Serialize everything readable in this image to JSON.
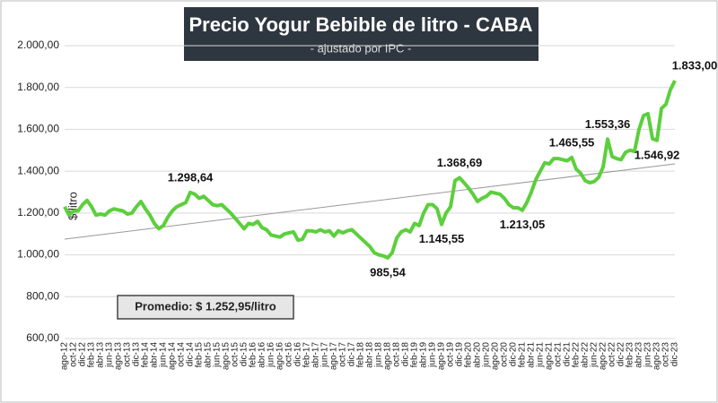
{
  "chart_data": {
    "type": "line",
    "title": "Precio Yogur Bebible de litro - CABA",
    "subtitle": "- ajustado por IPC -",
    "y_label": "$/litro",
    "annotation": "Promedio: $ 1.252,95/litro",
    "ylim": [
      600,
      2000
    ],
    "yticks": [
      {
        "value": 600,
        "label": "600,00"
      },
      {
        "value": 800,
        "label": "800,00"
      },
      {
        "value": 1000,
        "label": "1.000,00"
      },
      {
        "value": 1200,
        "label": "1.200,00"
      },
      {
        "value": 1400,
        "label": "1.400,00"
      },
      {
        "value": 1600,
        "label": "1.600,00"
      },
      {
        "value": 1800,
        "label": "1.800,00"
      },
      {
        "value": 2000,
        "label": "2.000,00"
      }
    ],
    "grid": true,
    "color": "#5ccf3c",
    "trendline": [
      1075,
      1435
    ],
    "trend_color": "#999999",
    "categories": [
      "ago-12",
      null,
      "oct-12",
      null,
      "dic-12",
      null,
      "feb-13",
      null,
      "abr-13",
      null,
      "jun-13",
      null,
      "ago-13",
      null,
      "oct-13",
      null,
      "dic-13",
      null,
      "feb-14",
      null,
      "abr-14",
      null,
      "jun-14",
      null,
      "ago-14",
      null,
      "oct-14",
      null,
      "dic-14",
      null,
      "feb-15",
      null,
      "abr-15",
      null,
      "jun-15",
      null,
      "ago-15",
      null,
      "oct-15",
      null,
      "dic-15",
      null,
      "feb-16",
      null,
      "abr-16",
      null,
      "jun-16",
      null,
      "ago-16",
      null,
      "oct-16",
      null,
      "dic-16",
      null,
      "feb-17",
      null,
      "abr-17",
      null,
      "jun-17",
      null,
      "ago-17",
      null,
      "oct-17",
      null,
      "dic-17",
      null,
      "feb-18",
      null,
      "abr-18",
      null,
      "jun-18",
      null,
      "ago-18",
      null,
      "oct-18",
      null,
      "dic-18",
      null,
      "feb-19",
      null,
      "abr-19",
      null,
      "jun-19",
      null,
      "ago-19",
      null,
      "oct-19",
      null,
      "dic-19",
      null,
      "feb-20",
      null,
      "abr-20",
      null,
      "jun-20",
      null,
      "ago-20",
      null,
      "oct-20",
      null,
      "dic-20",
      null,
      "feb-21",
      null,
      "abr-21",
      null,
      "jun-21",
      null,
      "ago-21",
      null,
      "oct-21",
      null,
      "dic-21",
      null,
      "feb-22",
      null,
      "abr-22",
      null,
      "jun-22",
      null,
      "ago-22",
      null,
      "oct-22",
      null,
      "dic-22",
      null,
      "feb-23",
      null,
      "abr-23",
      null,
      "jun-23",
      null,
      "ago-23",
      null,
      "oct-23",
      null,
      "dic-23"
    ],
    "values": [
      1230,
      1190,
      1210,
      1210,
      1240,
      1260,
      1230,
      1190,
      1195,
      1190,
      1210,
      1220,
      1215,
      1210,
      1195,
      1200,
      1230,
      1255,
      1220,
      1190,
      1150,
      1125,
      1140,
      1180,
      1210,
      1230,
      1240,
      1250,
      1298.64,
      1290,
      1270,
      1280,
      1260,
      1240,
      1235,
      1240,
      1220,
      1200,
      1175,
      1150,
      1125,
      1150,
      1145,
      1160,
      1130,
      1120,
      1095,
      1090,
      1085,
      1100,
      1105,
      1110,
      1070,
      1075,
      1115,
      1115,
      1110,
      1120,
      1110,
      1115,
      1090,
      1115,
      1105,
      1115,
      1120,
      1100,
      1080,
      1060,
      1040,
      1010,
      1000,
      995,
      985.54,
      1010,
      1080,
      1110,
      1120,
      1110,
      1150,
      1140,
      1200,
      1240,
      1240,
      1220,
      1145.55,
      1200,
      1230,
      1355,
      1368.69,
      1345,
      1320,
      1290,
      1255,
      1270,
      1280,
      1300,
      1295,
      1290,
      1270,
      1240,
      1225,
      1225,
      1213.05,
      1250,
      1300,
      1360,
      1400,
      1440,
      1435,
      1460,
      1460,
      1455,
      1450,
      1465.55,
      1410,
      1390,
      1355,
      1345,
      1350,
      1370,
      1420,
      1553.36,
      1470,
      1460,
      1455,
      1490,
      1500,
      1495,
      1600,
      1665,
      1675,
      1555,
      1546.92,
      1700,
      1720,
      1790,
      1833
    ],
    "value_labels": [
      null,
      null,
      null,
      null,
      null,
      null,
      null,
      null,
      null,
      null,
      null,
      null,
      null,
      null,
      null,
      null,
      null,
      null,
      null,
      null,
      null,
      null,
      null,
      null,
      null,
      null,
      null,
      null,
      "1.298,64",
      null,
      null,
      null,
      null,
      null,
      null,
      null,
      null,
      null,
      null,
      null,
      null,
      null,
      null,
      null,
      null,
      null,
      null,
      null,
      null,
      null,
      null,
      null,
      null,
      null,
      null,
      null,
      null,
      null,
      null,
      null,
      null,
      null,
      null,
      null,
      null,
      null,
      null,
      null,
      null,
      null,
      null,
      null,
      "985,54",
      null,
      null,
      null,
      null,
      null,
      null,
      null,
      null,
      null,
      null,
      null,
      "1.145,55",
      null,
      null,
      null,
      "1.368,69",
      null,
      null,
      null,
      null,
      null,
      null,
      null,
      null,
      null,
      null,
      null,
      null,
      null,
      "1.213,05",
      null,
      null,
      null,
      null,
      null,
      null,
      null,
      null,
      null,
      null,
      "1.465,55",
      null,
      null,
      null,
      null,
      null,
      null,
      null,
      "1.553,36",
      null,
      null,
      null,
      null,
      null,
      null,
      null,
      null,
      null,
      null,
      "1.546,92",
      null,
      null,
      null,
      "1.833,00"
    ]
  }
}
